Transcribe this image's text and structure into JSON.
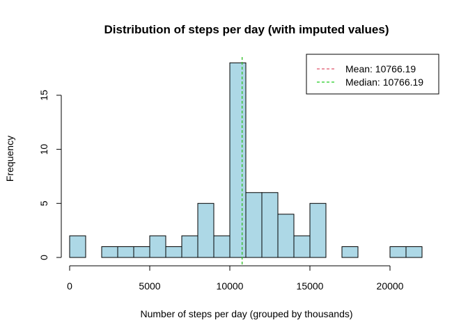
{
  "chart_data": {
    "type": "bar",
    "title": "Distribution of steps per day (with imputed values)",
    "xlabel": "Number of steps per day (grouped by thousands)",
    "ylabel": "Frequency",
    "bin_width": 1000,
    "x_bins_start": [
      0,
      1000,
      2000,
      3000,
      4000,
      5000,
      6000,
      7000,
      8000,
      9000,
      10000,
      11000,
      12000,
      13000,
      14000,
      15000,
      16000,
      17000,
      18000,
      19000,
      20000,
      21000
    ],
    "values": [
      2,
      0,
      1,
      1,
      1,
      2,
      1,
      2,
      5,
      2,
      18,
      6,
      6,
      4,
      2,
      5,
      0,
      1,
      0,
      0,
      1,
      1
    ],
    "xlim": [
      0,
      22000
    ],
    "ylim": [
      0,
      18
    ],
    "x_ticks": [
      0,
      5000,
      10000,
      15000,
      20000
    ],
    "x_tick_labels": [
      "0",
      "5000",
      "10000",
      "15000",
      "20000"
    ],
    "y_ticks": [
      0,
      5,
      10,
      15
    ],
    "y_tick_labels": [
      "0",
      "5",
      "10",
      "15"
    ],
    "bar_color": "#ADD8E6",
    "grid": false,
    "legend_position": "top-right",
    "reference_lines": [
      {
        "label": "Mean: 10766.19",
        "value": 10766.19,
        "color": "#DF536B",
        "style": "dashed"
      },
      {
        "label": "Median: 10766.19",
        "value": 10766.19,
        "color": "#22CC22",
        "style": "dashed"
      }
    ]
  }
}
